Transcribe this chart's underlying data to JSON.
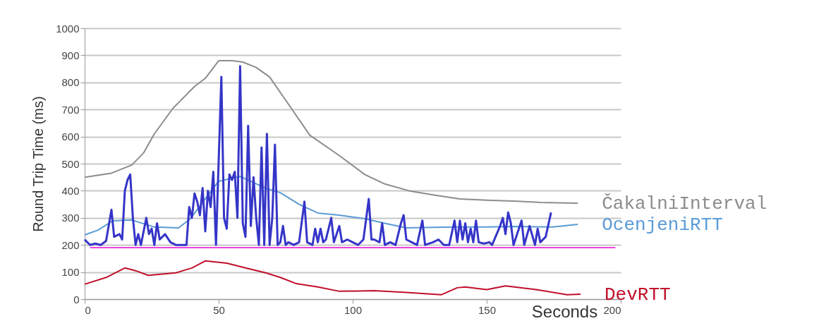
{
  "chart_data": {
    "type": "line",
    "xlabel": "Seconds",
    "ylabel": "Round Trip Time (ms)",
    "xlim": [
      0,
      200
    ],
    "xticks": [
      0,
      50,
      100,
      150,
      200
    ],
    "ylim": [
      0,
      1000
    ],
    "yticks": [
      0,
      100,
      200,
      300,
      400,
      500,
      600,
      700,
      800,
      900,
      1000
    ],
    "grid": "y",
    "marker": "none",
    "line_style": "solid",
    "series": [
      {
        "name": "ČakalniInterval",
        "color": "#8c8c8c",
        "x": [
          0,
          10,
          17.6,
          22,
          26,
          33,
          41,
          45,
          50,
          55,
          59,
          64,
          69,
          76,
          84,
          95,
          104.5,
          112,
          121,
          130,
          140,
          150,
          160,
          170,
          184
        ],
        "values": [
          450,
          465,
          495,
          540,
          610,
          705,
          785,
          815,
          880,
          880,
          875,
          855,
          820,
          720,
          605,
          530,
          460,
          425,
          400,
          385,
          370,
          365,
          362,
          357,
          354
        ]
      },
      {
        "name": "OcenjeniRTT",
        "color": "#5b9bd5",
        "x": [
          0,
          5,
          10.5,
          17.6,
          26,
          35,
          39.5,
          44,
          50,
          58,
          67.6,
          73,
          80,
          87,
          95,
          104.5,
          112,
          120,
          130,
          140,
          150,
          160,
          174.5,
          184
        ],
        "values": [
          237,
          255,
          289,
          292,
          266,
          263,
          297,
          357,
          435,
          453,
          409,
          393,
          350,
          318,
          310,
          297,
          280,
          263,
          265,
          266,
          266,
          268,
          266,
          276
        ]
      },
      {
        "color": "#3535c8",
        "x": [
          0,
          2,
          4,
          6,
          8,
          10,
          11,
          13,
          14,
          15,
          16,
          17,
          18,
          19,
          20,
          21,
          23,
          24,
          25,
          26,
          27,
          28,
          30,
          32,
          34,
          36,
          38,
          39,
          40,
          41,
          42,
          43,
          44,
          45,
          46,
          47,
          48,
          49,
          51,
          52,
          53,
          54,
          55,
          56,
          57,
          58,
          59,
          60,
          61,
          62,
          63,
          64,
          65,
          66,
          67,
          68,
          69,
          70,
          71,
          72,
          73,
          74,
          75,
          76,
          78,
          80,
          82,
          83,
          85,
          86,
          87,
          88,
          89,
          90,
          92,
          93,
          95,
          96,
          98,
          100,
          102,
          104,
          106,
          107,
          108,
          110,
          111,
          112,
          114,
          116,
          118,
          119,
          120,
          122,
          124,
          126,
          127,
          130,
          132,
          134,
          136,
          138,
          139,
          140,
          141,
          142,
          143,
          144,
          145,
          146,
          147,
          149,
          151,
          152,
          155,
          156,
          157,
          158,
          159,
          160,
          161,
          163,
          164,
          166,
          168,
          169,
          170,
          172,
          174
        ],
        "values": [
          220,
          200,
          205,
          200,
          215,
          330,
          230,
          240,
          220,
          400,
          440,
          460,
          300,
          200,
          240,
          200,
          300,
          240,
          260,
          200,
          280,
          220,
          240,
          210,
          200,
          200,
          200,
          340,
          300,
          390,
          360,
          310,
          410,
          250,
          400,
          340,
          470,
          200,
          820,
          300,
          260,
          460,
          440,
          470,
          300,
          860,
          280,
          230,
          640,
          270,
          450,
          300,
          200,
          560,
          200,
          610,
          200,
          300,
          570,
          200,
          210,
          270,
          200,
          210,
          200,
          210,
          360,
          210,
          200,
          260,
          210,
          260,
          210,
          220,
          300,
          210,
          270,
          210,
          220,
          210,
          200,
          220,
          370,
          220,
          220,
          210,
          280,
          200,
          210,
          200,
          280,
          310,
          220,
          210,
          200,
          290,
          200,
          210,
          220,
          200,
          200,
          290,
          210,
          290,
          220,
          280,
          210,
          260,
          210,
          290,
          210,
          205,
          210,
          200,
          270,
          300,
          240,
          320,
          280,
          200,
          230,
          290,
          200,
          270,
          200,
          260,
          210,
          230,
          320
        ]
      },
      {
        "color": "#ee44dd",
        "x": [
          2,
          198
        ],
        "values": [
          190,
          190
        ]
      },
      {
        "name": "DevRTT",
        "color": "#c0102a",
        "x": [
          0,
          8,
          15,
          19,
          23.7,
          34,
          40,
          45,
          53,
          60,
          67.6,
          73,
          79,
          87,
          95,
          108,
          120,
          133,
          139,
          142,
          150,
          157,
          168,
          180,
          185
        ],
        "values": [
          55,
          80,
          115,
          105,
          88,
          97,
          115,
          141,
          133,
          115,
          97,
          80,
          57,
          45,
          29,
          31,
          25,
          16,
          42,
          45,
          35,
          49,
          36,
          16,
          18
        ]
      }
    ]
  }
}
